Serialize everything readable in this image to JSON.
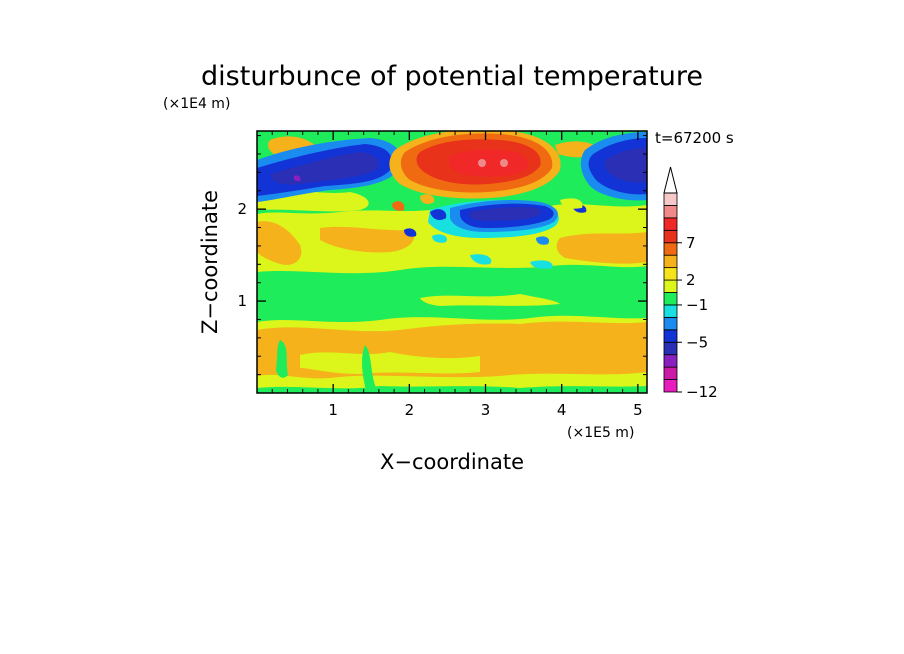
{
  "chart_data": {
    "type": "heatmap",
    "title": "disturbunce of potential temperature",
    "time_label": "t=67200 s",
    "xlabel": "X−coordinate",
    "ylabel": "Z−coordinate",
    "x_unit": "(×1E5 m)",
    "y_unit": "(×1E4 m)",
    "xlim": [
      0,
      5.12
    ],
    "ylim": [
      0,
      2.85
    ],
    "x_ticks": [
      {
        "value": 1,
        "label": "1"
      },
      {
        "value": 2,
        "label": "2"
      },
      {
        "value": 3,
        "label": "3"
      },
      {
        "value": 4,
        "label": "4"
      },
      {
        "value": 5,
        "label": "5"
      }
    ],
    "y_ticks": [
      {
        "value": 1,
        "label": "1"
      },
      {
        "value": 2,
        "label": "2"
      }
    ],
    "colorbar": {
      "levels": [
        {
          "color": "#e81cbd"
        },
        {
          "color": "#cc1aa8"
        },
        {
          "color": "#8a20bd"
        },
        {
          "color": "#2a2fb5"
        },
        {
          "color": "#1233d6"
        },
        {
          "color": "#1a8cf0"
        },
        {
          "color": "#18e0e0"
        },
        {
          "color": "#1eec5a"
        },
        {
          "color": "#dcf51a"
        },
        {
          "color": "#f5e41a"
        },
        {
          "color": "#f5b21a"
        },
        {
          "color": "#f06a12"
        },
        {
          "color": "#e8321a"
        },
        {
          "color": "#f02828"
        },
        {
          "color": "#f08a8a"
        },
        {
          "color": "#f6c8c8"
        }
      ],
      "tick_labels": [
        {
          "level_index": 0,
          "label": "−12"
        },
        {
          "level_index": 4,
          "label": "−5"
        },
        {
          "level_index": 7,
          "label": "−1"
        },
        {
          "level_index": 9,
          "label": "2"
        },
        {
          "level_index": 12,
          "label": "7"
        }
      ]
    },
    "field_regions": [
      {
        "name": "base-light-yellow",
        "color": "#dcf51a",
        "x": [
          0,
          5.12
        ],
        "z": [
          0,
          2.85
        ]
      },
      {
        "name": "lower-orange-band",
        "color": "#f5b21a",
        "x": [
          0,
          5.12
        ],
        "z": [
          0.2,
          0.8
        ]
      },
      {
        "name": "green-band",
        "color": "#1eec5a",
        "x": [
          0,
          5.12
        ],
        "z": [
          0.95,
          1.45
        ]
      },
      {
        "name": "upper-green",
        "color": "#1eec5a",
        "x": [
          0,
          5.12
        ],
        "z": [
          2.0,
          2.85
        ]
      },
      {
        "name": "left-blue-band",
        "color": "#1233d6",
        "x": [
          0,
          1.8
        ],
        "z": [
          2.2,
          2.75
        ]
      },
      {
        "name": "right-blue-band",
        "color": "#1233d6",
        "x": [
          4.3,
          5.12
        ],
        "z": [
          2.25,
          2.85
        ]
      },
      {
        "name": "center-blue-band",
        "color": "#1233d6",
        "x": [
          2.6,
          3.9
        ],
        "z": [
          1.8,
          2.15
        ]
      },
      {
        "name": "center-warm-core",
        "color": "#e8321a",
        "x": [
          2.4,
          3.8
        ],
        "z": [
          2.3,
          2.75
        ]
      }
    ]
  }
}
